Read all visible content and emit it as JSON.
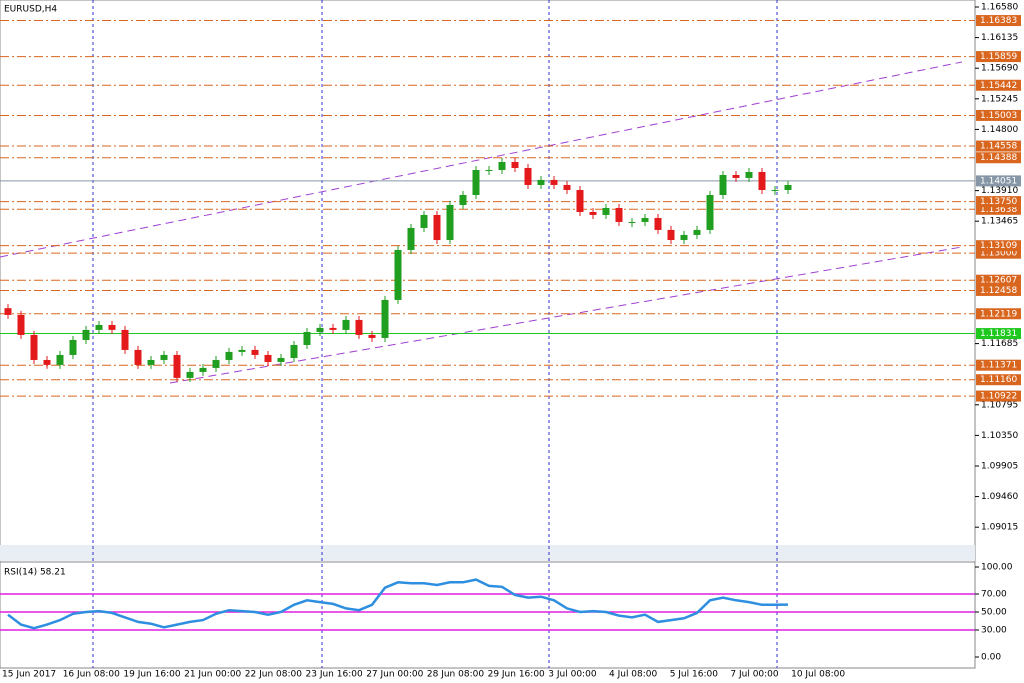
{
  "chart_data": [
    {
      "type": "candlestick",
      "title": "EURUSD,H4",
      "up_color": "#1f9e1f",
      "down_color": "#e3191c",
      "open": [
        1.122,
        1.12102,
        1.11811,
        1.11447,
        1.11375,
        1.1152,
        1.11738,
        1.11884,
        1.11956,
        1.11884,
        1.11593,
        1.11375,
        1.11447,
        1.1152,
        1.11186,
        1.11273,
        1.11331,
        1.11447,
        1.11564,
        1.11593,
        1.1152,
        1.11418,
        1.11476,
        1.11665,
        1.11854,
        1.11913,
        1.11884,
        1.12029,
        1.11811,
        1.11767,
        1.1232,
        1.13047,
        1.13367,
        1.13556,
        1.13192,
        1.13701,
        1.13846,
        1.1421,
        1.1421,
        1.14326,
        1.14239,
        1.13992,
        1.14065,
        1.13992,
        1.13919,
        1.13599,
        1.13556,
        1.13657,
        1.13454,
        1.13454,
        1.13512,
        1.13338,
        1.13192,
        1.13265,
        1.13338,
        1.13846,
        1.14137,
        1.14094,
        1.14181,
        1.13919,
        1.13919
      ],
      "close": [
        1.12102,
        1.11811,
        1.11447,
        1.11375,
        1.1152,
        1.11738,
        1.11884,
        1.11956,
        1.11884,
        1.11593,
        1.11375,
        1.11447,
        1.1152,
        1.11186,
        1.11273,
        1.11331,
        1.11447,
        1.11564,
        1.11593,
        1.1152,
        1.11418,
        1.11476,
        1.11665,
        1.11854,
        1.11913,
        1.11884,
        1.12029,
        1.11811,
        1.11767,
        1.1232,
        1.13047,
        1.13367,
        1.13556,
        1.13192,
        1.13701,
        1.13846,
        1.1421,
        1.1421,
        1.14326,
        1.14239,
        1.13992,
        1.14065,
        1.13992,
        1.13919,
        1.13599,
        1.13556,
        1.13657,
        1.13454,
        1.13454,
        1.13512,
        1.13338,
        1.13192,
        1.13265,
        1.13338,
        1.13846,
        1.14137,
        1.14094,
        1.14181,
        1.13919,
        1.13919,
        1.13992
      ],
      "ylim": [
        1.08756,
        1.16682
      ],
      "yticks": [
        {
          "value": 1.1658,
          "label": "1.16580"
        },
        {
          "value": 1.16135,
          "label": "1.16135"
        },
        {
          "value": 1.1569,
          "label": "1.15690"
        },
        {
          "value": 1.15245,
          "label": "1.15245"
        },
        {
          "value": 1.148,
          "label": "1.14800"
        },
        {
          "value": 1.1391,
          "label": "1.13910"
        },
        {
          "value": 1.13465,
          "label": "1.13465"
        },
        {
          "value": 1.11685,
          "label": "1.11685"
        },
        {
          "value": 1.10795,
          "label": "1.10795"
        },
        {
          "value": 1.1035,
          "label": "1.10350"
        },
        {
          "value": 1.09905,
          "label": "1.09905"
        },
        {
          "value": 1.0946,
          "label": "1.09460"
        },
        {
          "value": 1.09015,
          "label": "1.09015"
        }
      ],
      "levels": [
        {
          "value": 1.16383,
          "label": "1.16383",
          "color": "#d9661f"
        },
        {
          "value": 1.15859,
          "label": "1.15859",
          "color": "#d9661f"
        },
        {
          "value": 1.15442,
          "label": "1.15442",
          "color": "#d9661f"
        },
        {
          "value": 1.15003,
          "label": "1.15003",
          "color": "#d9661f"
        },
        {
          "value": 1.14558,
          "label": "1.14558",
          "color": "#d9661f"
        },
        {
          "value": 1.14388,
          "label": "1.14388",
          "color": "#d9661f"
        },
        {
          "value": 1.14051,
          "label": "1.14051",
          "color": "#8796a6"
        },
        {
          "value": 1.13638,
          "label": "1.13638",
          "color": "#d9661f"
        },
        {
          "value": 1.1375,
          "label": "1.13750",
          "color": "#d9661f"
        },
        {
          "value": 1.13,
          "label": "1.13000",
          "color": "#d9661f"
        },
        {
          "value": 1.13109,
          "label": "1.13109",
          "color": "#d9661f"
        },
        {
          "value": 1.12607,
          "label": "1.12607",
          "color": "#d9661f"
        },
        {
          "value": 1.12458,
          "label": "1.12458",
          "color": "#d9661f"
        },
        {
          "value": 1.12119,
          "label": "1.12119",
          "color": "#d9661f"
        },
        {
          "value": 1.11831,
          "label": "1.11831",
          "color": "#1ec81e"
        },
        {
          "value": 1.11371,
          "label": "1.11371",
          "color": "#d9661f"
        },
        {
          "value": 1.1116,
          "label": "1.11160",
          "color": "#d9661f"
        },
        {
          "value": 1.10922,
          "label": "1.10922",
          "color": "#d9661f"
        }
      ]
    },
    {
      "type": "line",
      "title": "RSI(14) 58.21",
      "color": "#2e8fe0",
      "values": [
        47,
        36,
        32,
        36,
        41,
        48,
        50,
        51,
        49,
        44,
        39,
        37,
        33,
        36,
        39,
        41,
        48,
        52,
        51,
        50,
        47,
        50,
        58,
        63,
        61,
        59,
        54,
        52,
        58,
        77,
        83,
        82,
        82,
        80,
        83,
        83,
        86,
        79,
        78,
        69,
        66,
        67,
        63,
        54,
        50,
        51,
        50,
        46,
        44,
        47,
        39,
        41,
        43,
        49,
        63,
        66,
        63,
        61,
        58,
        58,
        58.21
      ],
      "ylim": [
        0,
        100
      ],
      "yticks": [
        {
          "value": 100,
          "label": "100.00"
        },
        {
          "value": 70,
          "label": "70.00"
        },
        {
          "value": 50,
          "label": "50.00"
        },
        {
          "value": 30,
          "label": "30.00"
        },
        {
          "value": 0,
          "label": "0.00"
        }
      ],
      "levels": [
        70,
        50,
        30
      ],
      "level_color": "#e020e0",
      "time_labels": [
        "15 Jun 2017",
        "16 Jun 08:00",
        "19 Jun 16:00",
        "21 Jun 00:00",
        "22 Jun 08:00",
        "23 Jun 16:00",
        "27 Jun 00:00",
        "28 Jun 08:00",
        "29 Jun 16:00",
        "3 Jul 00:00",
        "4 Jul 08:00",
        "5 Jul 16:00",
        "7 Jul 00:00",
        "10 Jul 08:00"
      ]
    }
  ]
}
